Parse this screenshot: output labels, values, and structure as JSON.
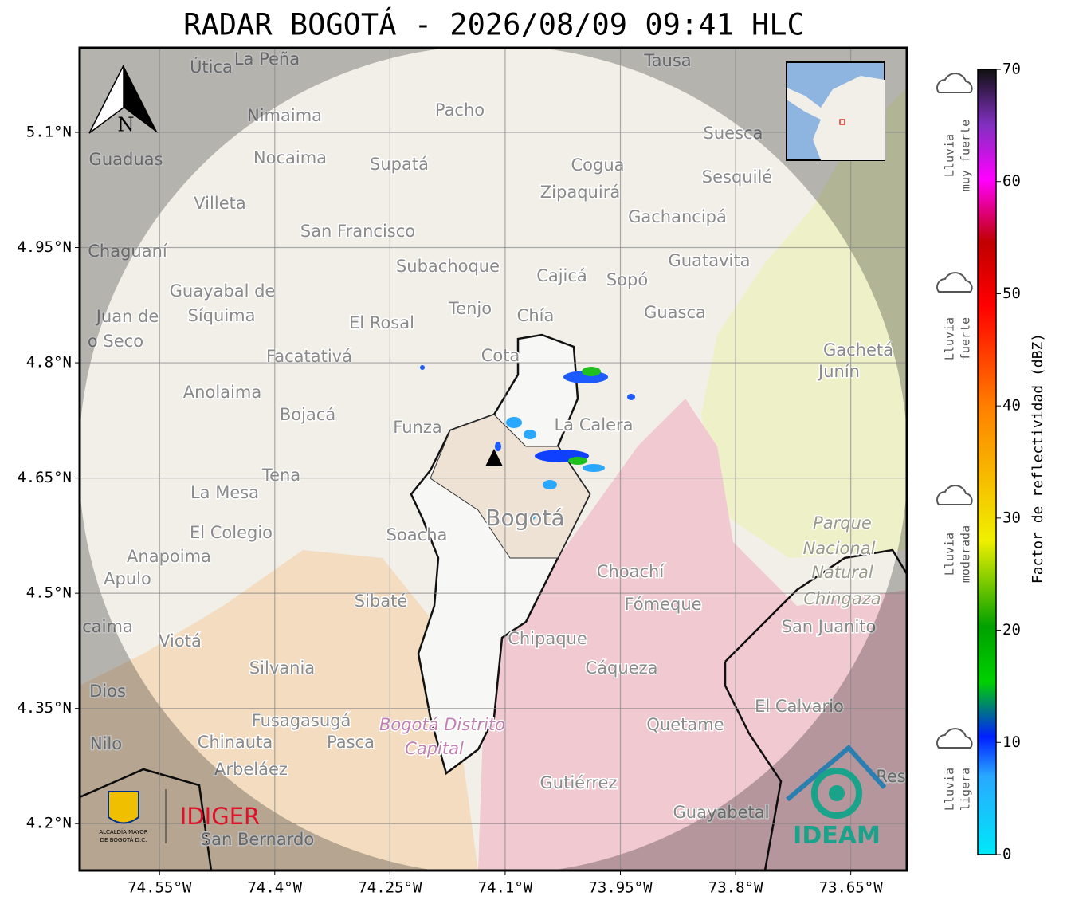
{
  "title": "RADAR BOGOTÁ - 2026/08/09 09:41 HLC",
  "map": {
    "xlim": [
      -74.654,
      -73.577
    ],
    "ylim": [
      4.139,
      5.21
    ],
    "grid": true,
    "xticks": [
      {
        "value": -74.55,
        "label": "74.55°W"
      },
      {
        "value": -74.4,
        "label": "74.4°W"
      },
      {
        "value": -74.25,
        "label": "74.25°W"
      },
      {
        "value": -74.1,
        "label": "74.1°W"
      },
      {
        "value": -73.95,
        "label": "73.95°W"
      },
      {
        "value": -73.8,
        "label": "73.8°W"
      },
      {
        "value": -73.65,
        "label": "73.65°W"
      }
    ],
    "yticks": [
      {
        "value": 5.1,
        "label": "5.1°N"
      },
      {
        "value": 4.95,
        "label": "4.95°N"
      },
      {
        "value": 4.8,
        "label": "4.8°N"
      },
      {
        "value": 4.65,
        "label": "4.65°N"
      },
      {
        "value": 4.5,
        "label": "4.5°N"
      },
      {
        "value": 4.35,
        "label": "4.35°N"
      },
      {
        "value": 4.2,
        "label": "4.2°N"
      }
    ],
    "places": [
      "Útica",
      "La Peña",
      "Tausa",
      "Pacho",
      "Nimaima",
      "Guaduas",
      "Nocaima",
      "Supatá",
      "Cogua",
      "Suesca",
      "Sesquilé",
      "Zipaquirá",
      "Villeta",
      "Gachancipá",
      "San Francisco",
      "Chaguaní",
      "Guatavita",
      "Subachoque",
      "Cajicá",
      "Sopó",
      "Guayabal de",
      "Síquima",
      "Tenjo",
      "Chía",
      "Guasca",
      "Juan de",
      "o Seco",
      "El Rosal",
      "Facatativá",
      "Cota",
      "Gachetá",
      "Junín",
      "Anolaima",
      "Bojacá",
      "Funza",
      "La Calera",
      "Tena",
      "La Mesa",
      "Bogotá",
      "Parque",
      "El Colegio",
      "Soacha",
      "Nacional",
      "Anapoima",
      "Apulo",
      "Natural",
      "Choachí",
      "Chingaza",
      "Sibaté",
      "Fómeque",
      "San Juanito",
      "caima",
      "Viotá",
      "Chipaque",
      "Cáqueza",
      "Silvania",
      "Dios",
      "El Calvario",
      "Fusagasugá",
      "Bogotá Distrito",
      "Quetame",
      "Nilo",
      "Chinauta",
      "Pasca",
      "Capital",
      "Arbeláez",
      "Gutiérrez",
      "Res",
      "Guayabetal",
      "San Bernardo"
    ]
  },
  "north_label": "N",
  "colorbar": {
    "label": "Factor de reflectividad (dBZ)",
    "lim": [
      0,
      70
    ],
    "ticks": [
      0,
      10,
      20,
      30,
      40,
      50,
      60,
      70
    ]
  },
  "rain_levels": [
    [
      "Lluvia",
      "muy fuerte"
    ],
    [
      "Lluvia",
      "fuerte"
    ],
    [
      "Lluvia",
      "moderada"
    ],
    [
      "Lluvia",
      "ligera"
    ]
  ],
  "logos": {
    "alcaldia": [
      "ALCALDÍA MAYOR",
      "DE BOGOTÁ D.C."
    ],
    "idiger": "IDIGER",
    "ideam": "IDEAM"
  }
}
